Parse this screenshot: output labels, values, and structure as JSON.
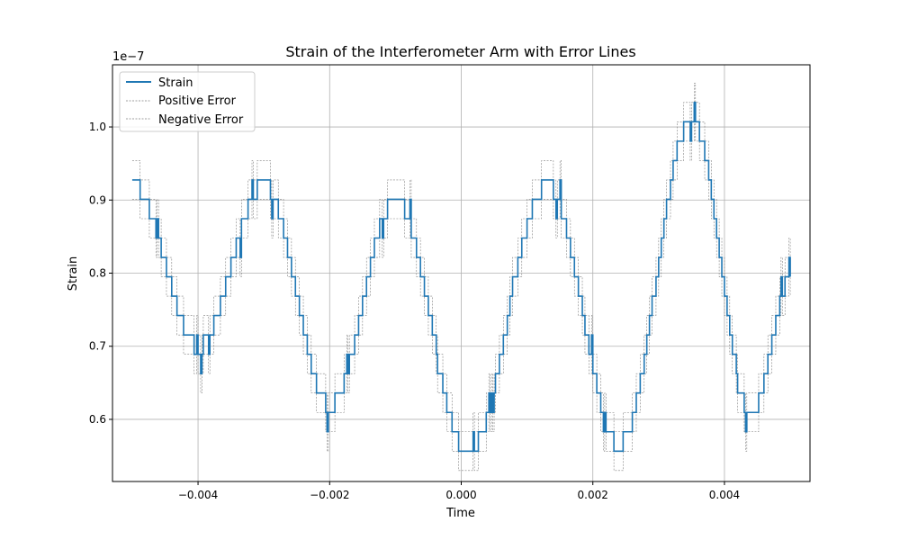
{
  "chart_data": {
    "type": "line",
    "title": "Strain of the Interferometer Arm with Error Lines",
    "xlabel": "Time",
    "ylabel": "Strain",
    "offset_text": "1e−7",
    "xlim": [
      -0.0053,
      0.0053
    ],
    "ylim": [
      5.15e-08,
      1.085e-07
    ],
    "x_ticks": [
      -0.004,
      -0.002,
      0.0,
      0.002,
      0.004
    ],
    "x_tick_labels": [
      "−0.004",
      "−0.002",
      "0.000",
      "0.002",
      "0.004"
    ],
    "y_ticks": [
      6e-08,
      7e-08,
      8e-08,
      9e-08,
      1e-07
    ],
    "y_tick_labels": [
      "0.6",
      "0.7",
      "0.8",
      "0.9",
      "1.0"
    ],
    "grid": true,
    "legend_position": "top-left",
    "legend": [
      "Strain",
      "Positive Error",
      "Negative Error"
    ],
    "colors": {
      "strain": "#1f77b4",
      "error": "#808080",
      "grid": "#b0b0b0"
    },
    "series": [
      {
        "name": "Strain",
        "quantization_step": 2.65e-09,
        "description_points_x": [
          -0.005,
          -0.004,
          -0.003,
          -0.002,
          -0.001,
          0.0001,
          0.0013,
          0.0024,
          0.0035,
          0.0044,
          0.005
        ],
        "description_points_y": [
          9.2e-08,
          7e-08,
          9.2e-08,
          6.2e-08,
          9e-08,
          5.55e-08,
          9.2e-08,
          5.65e-08,
          1.01e-07,
          6.1e-08,
          7.9e-08
        ]
      },
      {
        "name": "Positive Error",
        "offset": 2.65e-09
      },
      {
        "name": "Negative Error",
        "offset": -2.65e-09
      }
    ]
  }
}
